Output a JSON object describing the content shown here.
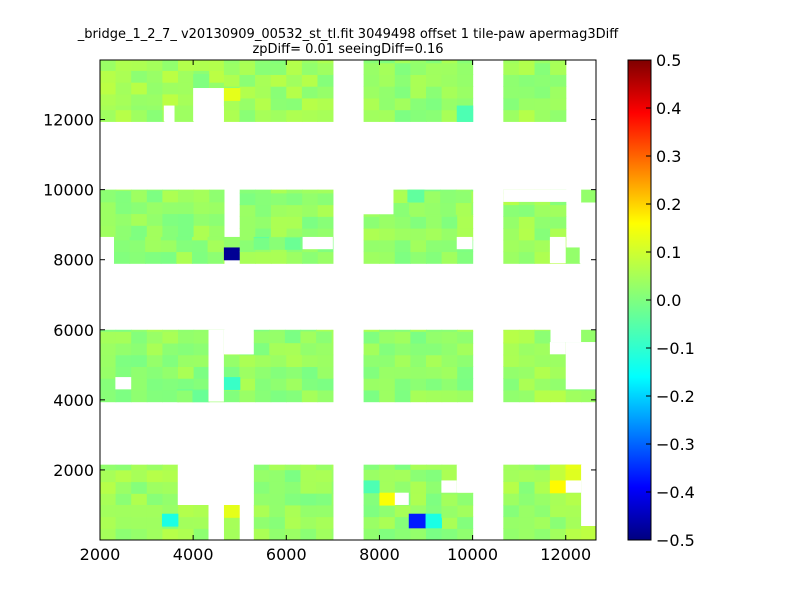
{
  "chart_data": {
    "type": "heatmap",
    "title": "_bridge_1_2_7_ v20130909_00532_st_tl.fit 3049498 offset 1 tile-paw apermag3Diff",
    "subtitle": "zpDiff= 0.01 seeingDiff=0.16",
    "xlim": [
      2000,
      12650
    ],
    "ylim": [
      0,
      13700
    ],
    "x_ticks": [
      2000,
      4000,
      6000,
      8000,
      10000,
      12000
    ],
    "x_tick_labels": [
      "2000",
      "4000",
      "6000",
      "8000",
      "10000",
      "12000"
    ],
    "y_ticks": [
      2000,
      4000,
      6000,
      8000,
      10000,
      12000
    ],
    "y_tick_labels": [
      "2000",
      "4000",
      "6000",
      "8000",
      "10000",
      "12000"
    ],
    "cell_size": 335,
    "colormap": "jet",
    "colorbar": {
      "min": -0.5,
      "max": 0.5,
      "ticks": [
        0.5,
        0.4,
        0.3,
        0.2,
        0.1,
        0.0,
        -0.1,
        -0.2,
        -0.3,
        -0.4,
        -0.5
      ],
      "tick_labels": [
        "0.5",
        "0.4",
        "0.3",
        "0.2",
        "0.1",
        "0.0",
        "−0.1",
        "−0.2",
        "−0.3",
        "−0.4",
        "−0.5"
      ]
    },
    "background_value": 0.03,
    "cells": [
      [
        2000,
        13700,
        4660,
        12400,
        0.035
      ],
      [
        2000,
        12400,
        3370,
        11950,
        0.03
      ],
      [
        3600,
        12400,
        4000,
        11950,
        0.03
      ],
      [
        4000,
        13300,
        4330,
        12900,
        0.0
      ],
      [
        4660,
        13700,
        7000,
        11950,
        0.03
      ],
      [
        4660,
        12900,
        5000,
        12550,
        0.1
      ],
      [
        7660,
        13700,
        10000,
        11950,
        0.02
      ],
      [
        9660,
        12400,
        10000,
        11950,
        -0.05
      ],
      [
        10660,
        13700,
        12000,
        11950,
        0.03
      ],
      [
        2000,
        10000,
        4660,
        8650,
        0.02
      ],
      [
        2300,
        8650,
        4660,
        7900,
        0.02
      ],
      [
        4660,
        8650,
        5000,
        8350,
        0.02
      ],
      [
        4660,
        8350,
        5000,
        8000,
        -0.48
      ],
      [
        5000,
        10000,
        7000,
        7900,
        0.02
      ],
      [
        5300,
        8650,
        6350,
        8300,
        -0.01
      ],
      [
        7660,
        9300,
        10000,
        7900,
        0.02
      ],
      [
        8300,
        10000,
        10000,
        9300,
        0.02
      ],
      [
        8600,
        10000,
        8950,
        9650,
        -0.03
      ],
      [
        10660,
        10000,
        12000,
        7900,
        0.03
      ],
      [
        12000,
        8350,
        12300,
        7900,
        0.02
      ],
      [
        12330,
        10000,
        12650,
        9650,
        0.02
      ],
      [
        2000,
        6000,
        4660,
        3950,
        0.02
      ],
      [
        3650,
        4300,
        4330,
        3950,
        0.0
      ],
      [
        4660,
        5300,
        7000,
        3950,
        0.02
      ],
      [
        5300,
        6000,
        7000,
        5300,
        0.02
      ],
      [
        4660,
        4650,
        5000,
        4300,
        -0.07
      ],
      [
        7660,
        5300,
        7990,
        4650,
        -0.05
      ],
      [
        7660,
        6000,
        10000,
        3950,
        0.02
      ],
      [
        10660,
        6000,
        11660,
        5650,
        0.03
      ],
      [
        10660,
        5650,
        12650,
        3950,
        0.03
      ],
      [
        12330,
        6000,
        12650,
        5650,
        0.02
      ],
      [
        2000,
        2150,
        3670,
        1000,
        0.03
      ],
      [
        2000,
        1000,
        4330,
        0,
        0.03
      ],
      [
        3330,
        750,
        3670,
        400,
        -0.1
      ],
      [
        4660,
        1000,
        5000,
        0,
        0.02
      ],
      [
        4660,
        1000,
        5000,
        650,
        0.1
      ],
      [
        5300,
        2150,
        7000,
        0,
        0.02
      ],
      [
        7660,
        2150,
        9660,
        1350,
        0.02
      ],
      [
        7660,
        1350,
        10000,
        0,
        0.02
      ],
      [
        7660,
        1700,
        7990,
        1350,
        -0.05
      ],
      [
        8000,
        1350,
        8330,
        1000,
        0.12
      ],
      [
        8630,
        750,
        8990,
        350,
        -0.35
      ],
      [
        8990,
        750,
        9330,
        350,
        -0.1
      ],
      [
        9330,
        1350,
        9660,
        650,
        0.02
      ],
      [
        10660,
        2150,
        12330,
        0,
        0.03
      ],
      [
        11660,
        2150,
        12330,
        1700,
        0.08
      ],
      [
        11660,
        1700,
        12000,
        1350,
        0.13
      ],
      [
        12330,
        400,
        12650,
        0,
        0.06
      ]
    ],
    "white_gaps": [
      [
        12330,
        13700,
        12650,
        11950
      ],
      [
        4000,
        12900,
        4660,
        11950
      ],
      [
        3370,
        12400,
        3600,
        11950
      ],
      [
        2000,
        8650,
        2300,
        7900
      ],
      [
        6350,
        8650,
        7000,
        8300
      ],
      [
        7660,
        10000,
        8300,
        9300
      ],
      [
        9660,
        8650,
        10000,
        8300
      ],
      [
        11660,
        8650,
        12000,
        7900
      ],
      [
        12300,
        8650,
        12650,
        7900
      ],
      [
        10660,
        10000,
        12330,
        9650
      ],
      [
        4330,
        6000,
        4660,
        3950
      ],
      [
        4660,
        6000,
        5300,
        5300
      ],
      [
        2330,
        4650,
        2670,
        4300
      ],
      [
        11660,
        5650,
        12000,
        5300
      ],
      [
        12000,
        5650,
        12650,
        4300
      ],
      [
        3670,
        2150,
        4660,
        1000
      ],
      [
        4330,
        1000,
        4660,
        0
      ],
      [
        4660,
        2150,
        5300,
        1000
      ],
      [
        5000,
        2150,
        5300,
        0
      ],
      [
        9660,
        2150,
        10000,
        1350
      ],
      [
        8330,
        1350,
        8630,
        1000
      ],
      [
        9330,
        1700,
        9660,
        1350
      ],
      [
        12000,
        1700,
        12330,
        1350
      ],
      [
        12330,
        2150,
        12650,
        400
      ]
    ]
  }
}
